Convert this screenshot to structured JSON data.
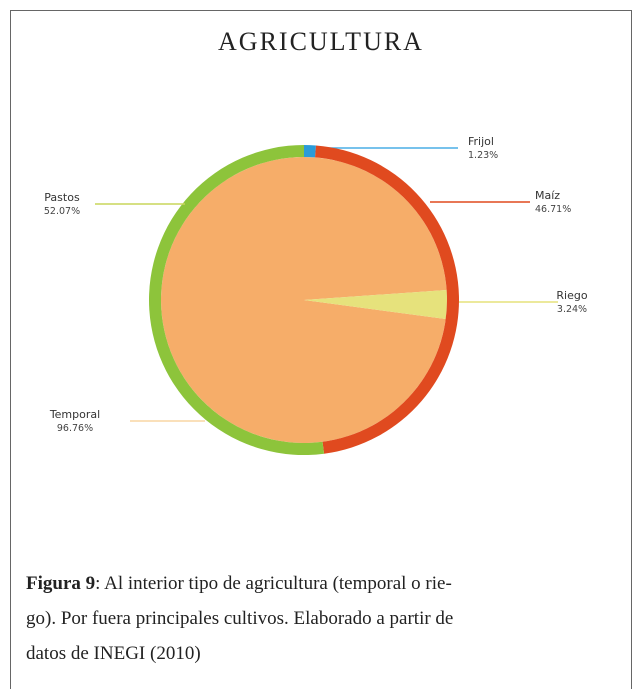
{
  "chart_data": {
    "type": "pie",
    "title": "AGRICULTURA",
    "rings": [
      {
        "categories": [
          "Temporal",
          "Riego"
        ],
        "values": [
          96.76,
          3.24
        ],
        "value_labels": [
          "96.76%",
          "3.24%"
        ],
        "colors": [
          "#f6ad69",
          "#e6e27c"
        ]
      },
      {
        "categories": [
          "Frijol",
          "Maíz",
          "Pastos"
        ],
        "values": [
          1.23,
          46.71,
          52.07
        ],
        "value_labels": [
          "1.23%",
          "46.71%",
          "52.07%"
        ],
        "colors": [
          "#2b9bd8",
          "#e04a1f",
          "#8dc43b"
        ]
      }
    ]
  },
  "caption": {
    "label": "Figura 9",
    "lines": [
      ": Al interior tipo de agricultura (temporal o rie-",
      "go). Por fuera principales cultivos. Elaborado a partir de",
      "datos de INEGI (2010)"
    ]
  }
}
